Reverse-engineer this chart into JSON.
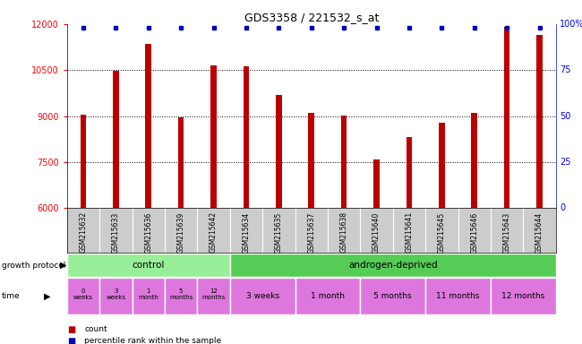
{
  "title": "GDS3358 / 221532_s_at",
  "samples": [
    "GSM215632",
    "GSM215633",
    "GSM215636",
    "GSM215639",
    "GSM215642",
    "GSM215634",
    "GSM215635",
    "GSM215637",
    "GSM215638",
    "GSM215640",
    "GSM215641",
    "GSM215645",
    "GSM215646",
    "GSM215643",
    "GSM215644"
  ],
  "counts": [
    9050,
    10480,
    11350,
    8960,
    10650,
    10620,
    9700,
    9100,
    9020,
    7580,
    8330,
    8780,
    9100,
    11900,
    11650
  ],
  "ylim_left": [
    6000,
    12000
  ],
  "yticks_left": [
    6000,
    7500,
    9000,
    10500,
    12000
  ],
  "bar_color": "#bb0000",
  "dot_color": "#0000bb",
  "bar_width": 0.18,
  "control_label": "control",
  "androgen_label": "androgen-deprived",
  "n_control": 5,
  "control_color": "#99ee99",
  "androgen_color": "#55cc55",
  "time_color": "#dd77dd",
  "bg_color": "#ffffff",
  "sample_bg": "#cccccc",
  "time_ctrl_labels": [
    "0\nweeks",
    "3\nweeks",
    "1\nmonth",
    "5\nmonths",
    "12\nmonths"
  ],
  "time_and_groups": [
    [
      5,
      6,
      "3 weeks"
    ],
    [
      7,
      8,
      "1 month"
    ],
    [
      9,
      10,
      "5 months"
    ],
    [
      11,
      12,
      "11 months"
    ],
    [
      13,
      14,
      "12 months"
    ]
  ]
}
